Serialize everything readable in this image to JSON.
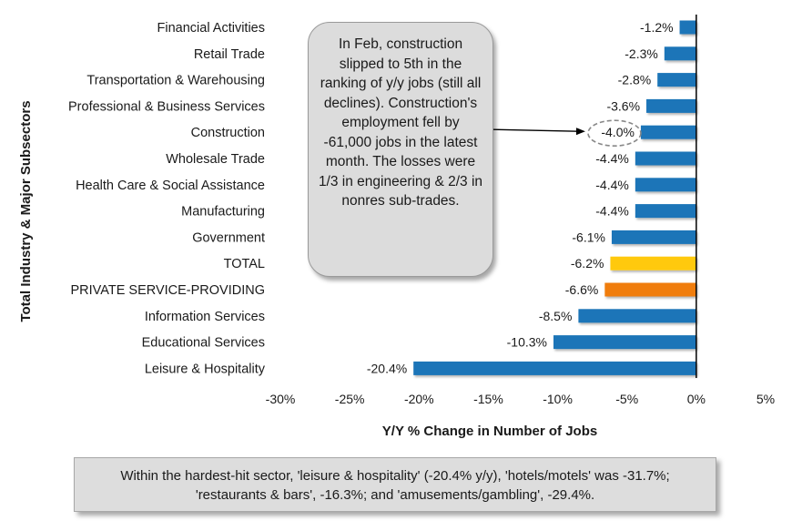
{
  "chart_data": {
    "type": "bar",
    "orientation": "horizontal",
    "categories": [
      "Financial Activities",
      "Retail Trade",
      "Transportation & Warehousing",
      "Professional & Business Services",
      "Construction",
      "Wholesale Trade",
      "Health Care & Social Assistance",
      "Manufacturing",
      "Government",
      "TOTAL",
      "PRIVATE SERVICE-PROVIDING",
      "Information Services",
      "Educational Services",
      "Leisure & Hospitality"
    ],
    "values": [
      -1.2,
      -2.3,
      -2.8,
      -3.6,
      -4.0,
      -4.4,
      -4.4,
      -4.4,
      -6.1,
      -6.2,
      -6.6,
      -8.5,
      -10.3,
      -20.4
    ],
    "value_labels": [
      "-1.2%",
      "-2.3%",
      "-2.8%",
      "-3.6%",
      "-4.0%",
      "-4.4%",
      "-4.4%",
      "-4.4%",
      "-6.1%",
      "-6.2%",
      "-6.6%",
      "-8.5%",
      "-10.3%",
      "-20.4%"
    ],
    "bar_colors": [
      "#1a74b8",
      "#1a74b8",
      "#1a74b8",
      "#1a74b8",
      "#1a74b8",
      "#1a74b8",
      "#1a74b8",
      "#1a74b8",
      "#1a74b8",
      "#ffc90e",
      "#f07d0e",
      "#1a74b8",
      "#1a74b8",
      "#1a74b8"
    ],
    "xlim": [
      -30,
      5
    ],
    "xticks": [
      -30,
      -25,
      -20,
      -15,
      -10,
      -5,
      0,
      5
    ],
    "xtick_labels": [
      "-30%",
      "-25%",
      "-20%",
      "-15%",
      "-10%",
      "-5%",
      "0%",
      "5%"
    ],
    "xlabel": "Y/Y % Change in Number of Jobs",
    "ylabel": "Total Industry & Major Subsectors",
    "highlight_category": "Construction",
    "grid": false
  },
  "callout": {
    "text": "In Feb, construction slipped to 5th in the ranking of y/y jobs (still all declines). Construction's employment fell by -61,000 jobs in the latest month. The losses were 1/3 in engineering & 2/3 in nonres sub-trades."
  },
  "footnote": {
    "text": "Within the hardest-hit sector, 'leisure & hospitality' (-20.4% y/y), 'hotels/motels' was -31.7%; 'restaurants & bars', -16.3%; and 'amusements/gambling', -29.4%."
  }
}
